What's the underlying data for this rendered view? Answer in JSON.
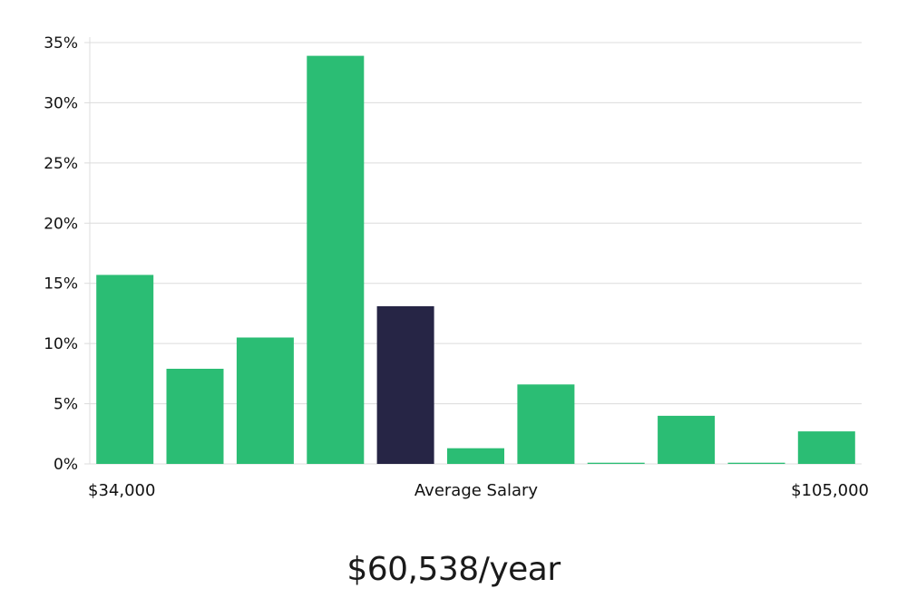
{
  "chart_data": {
    "type": "bar",
    "categories": [
      "1",
      "2",
      "3",
      "4",
      "5",
      "6",
      "7",
      "8",
      "9",
      "10",
      "11"
    ],
    "values": [
      15.7,
      7.9,
      10.5,
      33.9,
      13.1,
      1.3,
      6.6,
      0.1,
      4.0,
      0.1,
      2.7
    ],
    "highlight_index": 4,
    "ylim": [
      0,
      35
    ],
    "yticks": [
      0,
      5,
      10,
      15,
      20,
      25,
      30,
      35
    ],
    "ytick_labels": [
      "0%",
      "5%",
      "10%",
      "15%",
      "20%",
      "25%",
      "30%",
      "35%"
    ],
    "x_labels": {
      "left": "$34,000",
      "center": "Average Salary",
      "right": "$105,000"
    },
    "grid": true,
    "colors": {
      "bar": "#2bbd74",
      "highlight": "#262545",
      "grid": "#dcdcdc",
      "axis": "#dcdcdc"
    }
  },
  "summary": {
    "salary_text": "$60,538/year"
  }
}
